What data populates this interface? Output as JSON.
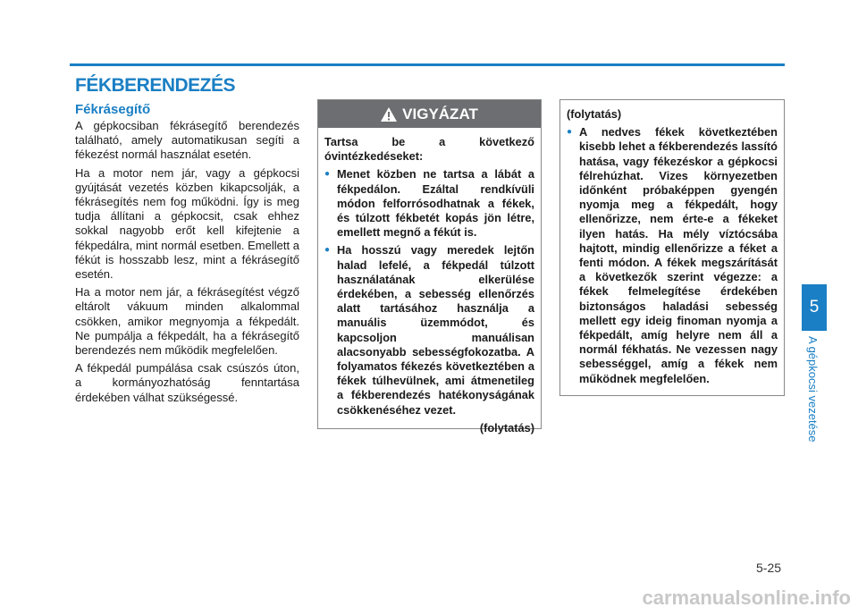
{
  "header": {
    "title": "FÉKBERENDEZÉS"
  },
  "left": {
    "heading": "Fékrásegítő",
    "paragraphs": [
      "A gépkocsiban fékrásegítő berendezés található, amely automatikusan segíti a fékezést normál használat esetén.",
      "Ha a motor nem jár, vagy a gépkocsi gyújtását vezetés közben kikapcsolják, a fékrásegítés nem fog működni. Így is meg tudja állítani a gépkocsit, csak ehhez sokkal nagyobb erőt kell kifejtenie a fékpedálra, mint normál esetben. Emellett a fékút is hosszabb lesz, mint a fékrásegítő esetén.",
      "Ha a motor nem jár, a fékrásegítést végző eltárolt vákuum minden alkalommal csökken, amikor megnyomja a fékpedált. Ne pumpálja a fékpedált, ha a fékrásegítő berendezés nem működik megfelelően.",
      "A fékpedál pumpálása csak csúszós úton, a kormányozhatóság fenntartása érdekében válhat szükségessé."
    ]
  },
  "warning": {
    "header": "VIGYÁZAT",
    "intro": "Tartsa be a következő óvintézkedéseket:",
    "bullets": [
      "Menet közben ne tartsa a lábát a fékpedálon. Ezáltal rendkívüli módon felforrósodhatnak a fékek, és túlzott fékbetét kopás jön létre, emellett megnő a fékút is.",
      "Ha hosszú vagy meredek lejtőn halad lefelé, a fékpedál túlzott használatának elkerülése érdekében, a sebesség ellenőrzés alatt tartásához használja a manuális üzemmódot, és kapcsoljon manuálisan alacsonyabb sebességfokozatba. A folyamatos fékezés következtében a fékek túlhevülnek, ami átmenetileg a fékberendezés hatékonyságának csökkenéséhez vezet."
    ],
    "continued": "(folytatás)"
  },
  "continuation": {
    "header": "(folytatás)",
    "bullets": [
      "A nedves fékek következtében kisebb lehet a fékberendezés lassító hatása, vagy fékezéskor a gépkocsi félrehúzhat. Vizes környezetben időnként próbaképpen gyengén nyomja meg a fékpedált, hogy ellenőrizze, nem érte-e a fékeket ilyen hatás. Ha mély víztócsába hajtott, mindig ellenőrizze a féket a fenti módon. A fékek megszárítását a következők szerint végezze: a fékek felmelegítése érdekében biztonságos haladási sebesség mellett egy ideig finoman nyomja a fékpedált, amíg helyre nem áll a normál fékhatás. Ne vezessen nagy sebességgel, amíg a fékek nem működnek megfelelően."
    ]
  },
  "sidebar": {
    "chapter": "5",
    "label": "A gépkocsi vezetése"
  },
  "footer": {
    "page": "5-25",
    "watermark": "carmanualsonline.info"
  }
}
